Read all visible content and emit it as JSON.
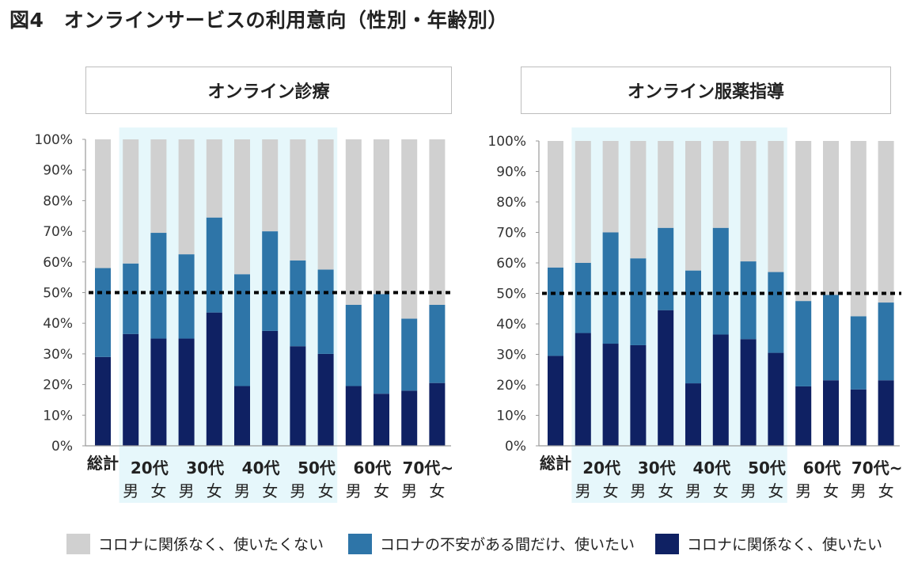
{
  "figure": {
    "title": "図4　オンラインサービスの利用意向（性別・年齢別）"
  },
  "colors": {
    "not_use": "#d0d0d0",
    "anxious": "#2e75a8",
    "regardless": "#0f2163",
    "highlight": "#e6f7fb",
    "reference_line": "#000000"
  },
  "legend": [
    {
      "label": "コロナに関係なく、使いたくない",
      "color": "#d0d0d0"
    },
    {
      "label": "コロナの不安がある間だけ、使いたい",
      "color": "#2e75a8"
    },
    {
      "label": "コロナに関係なく、使いたい",
      "color": "#0f2163"
    }
  ],
  "chart_data": [
    {
      "type": "bar",
      "stacked": true,
      "title": "オンライン診療",
      "ylim": [
        0,
        100
      ],
      "yticks": [
        "0%",
        "10%",
        "20%",
        "30%",
        "40%",
        "50%",
        "60%",
        "70%",
        "80%",
        "90%",
        "100%"
      ],
      "reference_line": 50,
      "groups": [
        {
          "label": "総計",
          "sub": [
            ""
          ]
        },
        {
          "label": "20代",
          "sub": [
            "男",
            "女"
          ]
        },
        {
          "label": "30代",
          "sub": [
            "男",
            "女"
          ]
        },
        {
          "label": "40代",
          "sub": [
            "男",
            "女"
          ]
        },
        {
          "label": "50代",
          "sub": [
            "男",
            "女"
          ]
        },
        {
          "label": "60代",
          "sub": [
            "男",
            "女"
          ]
        },
        {
          "label": "70代~",
          "sub": [
            "男",
            "女"
          ]
        }
      ],
      "highlighted_groups": [
        "20代",
        "30代",
        "40代",
        "50代"
      ],
      "series": [
        {
          "name": "コロナに関係なく、使いたい",
          "values": [
            29,
            36.5,
            35,
            35,
            43.5,
            19.5,
            37.5,
            32.5,
            30,
            19.5,
            17,
            18,
            20.5
          ]
        },
        {
          "name": "コロナの不安がある間だけ、使いたい",
          "values": [
            29,
            23,
            34.5,
            27.5,
            31,
            36.5,
            32.5,
            28,
            27.5,
            26.5,
            32.5,
            23.5,
            25.5
          ]
        },
        {
          "name": "コロナに関係なく、使いたくない",
          "values": [
            42,
            40.5,
            30.5,
            37.5,
            25.5,
            44,
            30,
            39.5,
            42.5,
            54,
            50.5,
            58.5,
            54
          ]
        }
      ]
    },
    {
      "type": "bar",
      "stacked": true,
      "title": "オンライン服薬指導",
      "ylim": [
        0,
        100
      ],
      "yticks": [
        "0%",
        "10%",
        "20%",
        "30%",
        "40%",
        "50%",
        "60%",
        "70%",
        "80%",
        "90%",
        "100%"
      ],
      "reference_line": 50,
      "groups": [
        {
          "label": "総計",
          "sub": [
            ""
          ]
        },
        {
          "label": "20代",
          "sub": [
            "男",
            "女"
          ]
        },
        {
          "label": "30代",
          "sub": [
            "男",
            "女"
          ]
        },
        {
          "label": "40代",
          "sub": [
            "男",
            "女"
          ]
        },
        {
          "label": "50代",
          "sub": [
            "男",
            "女"
          ]
        },
        {
          "label": "60代",
          "sub": [
            "男",
            "女"
          ]
        },
        {
          "label": "70代~",
          "sub": [
            "男",
            "女"
          ]
        }
      ],
      "highlighted_groups": [
        "20代",
        "30代",
        "40代",
        "50代"
      ],
      "series": [
        {
          "name": "コロナに関係なく、使いたい",
          "values": [
            29.5,
            37,
            33.5,
            33,
            44.5,
            20.5,
            36.5,
            35,
            30.5,
            19.5,
            21.5,
            18.5,
            21.5
          ]
        },
        {
          "name": "コロナの不安がある間だけ、使いたい",
          "values": [
            29,
            23,
            36.5,
            28.5,
            27,
            37,
            35,
            25.5,
            26.5,
            28,
            28,
            24,
            25.5
          ]
        },
        {
          "name": "コロナに関係なく、使いたくない",
          "values": [
            41.5,
            40,
            30,
            38.5,
            28.5,
            42.5,
            28.5,
            39.5,
            43,
            52.5,
            50.5,
            57.5,
            53
          ]
        }
      ]
    }
  ]
}
